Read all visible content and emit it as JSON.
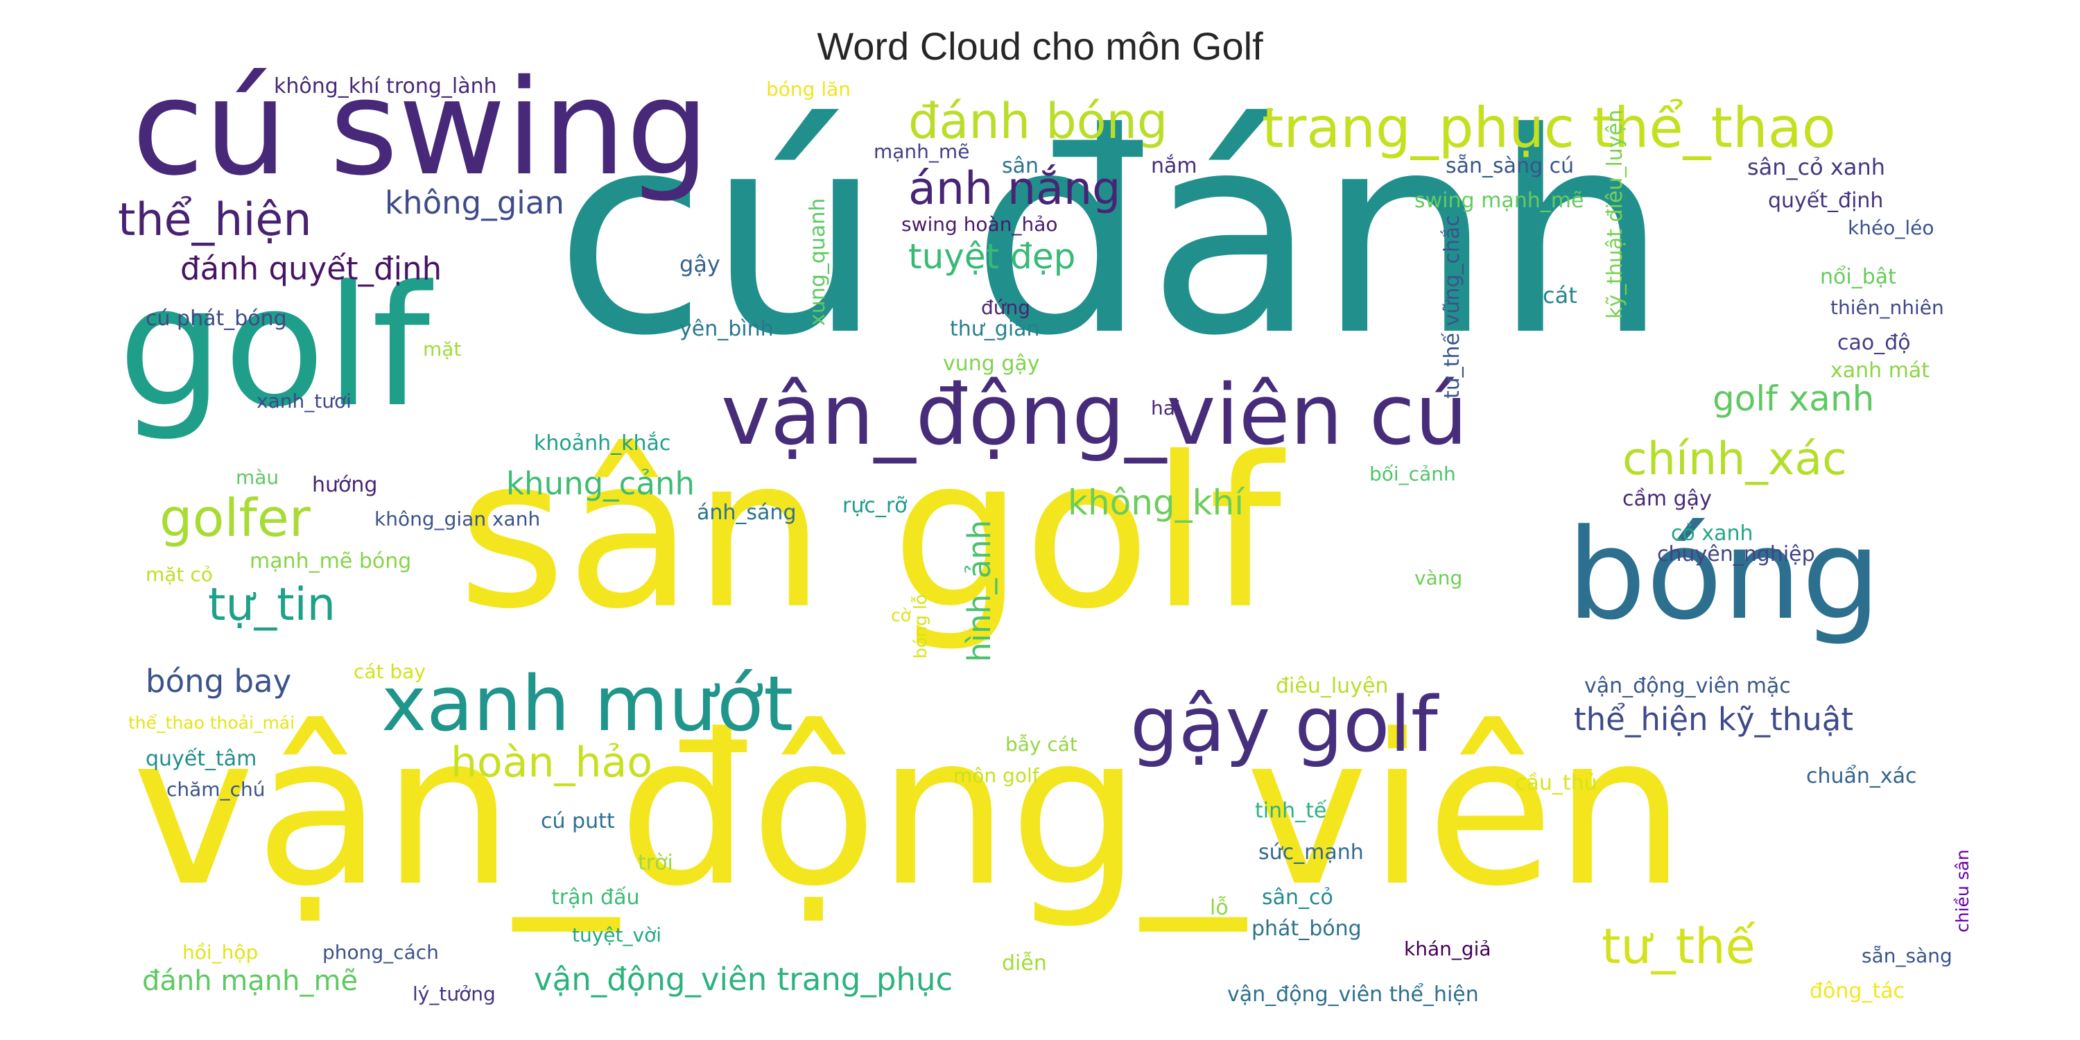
{
  "chart_data": {
    "type": "wordcloud",
    "title": "Word Cloud cho môn Golf",
    "words": [
      {
        "text": "cú đánh",
        "color": "#21908c"
      },
      {
        "text": "vận_động_viên",
        "color": "#f4e61e"
      },
      {
        "text": "sân golf",
        "color": "#f4e61e"
      },
      {
        "text": "cú swing",
        "color": "#482878"
      },
      {
        "text": "golf",
        "color": "#1f9e89"
      },
      {
        "text": "bóng",
        "color": "#2d6f8e"
      },
      {
        "text": "vận_động_viên cú",
        "color": "#472c7a"
      },
      {
        "text": "gậy golf",
        "color": "#46307e"
      },
      {
        "text": "xanh mướt",
        "color": "#1f958b"
      },
      {
        "text": "trang_phục thể_thao",
        "color": "#c5e021"
      },
      {
        "text": "đánh bóng",
        "color": "#bade28"
      },
      {
        "text": "ánh nắng",
        "color": "#482475"
      },
      {
        "text": "thể_hiện",
        "color": "#482173"
      },
      {
        "text": "golfer",
        "color": "#a8db34"
      },
      {
        "text": "tự_tin",
        "color": "#1fa088"
      },
      {
        "text": "chính_xác",
        "color": "#b5de2b"
      },
      {
        "text": "tư_thế",
        "color": "#d2e21b"
      },
      {
        "text": "hoàn_hảo",
        "color": "#c8e020"
      },
      {
        "text": "hình_ảnh",
        "color": "#4ac16d"
      },
      {
        "text": "không_gian",
        "color": "#3e4c8a"
      },
      {
        "text": "đánh quyết_định",
        "color": "#471365"
      },
      {
        "text": "tuyệt đẹp",
        "color": "#38b977"
      },
      {
        "text": "golf xanh",
        "color": "#5ec962"
      },
      {
        "text": "thể_hiện kỹ_thuật",
        "color": "#3e4a89"
      },
      {
        "text": "bóng bay",
        "color": "#3b528b"
      },
      {
        "text": "không_khí",
        "color": "#6ccd5a"
      },
      {
        "text": "khung_cảnh",
        "color": "#3dbc74"
      },
      {
        "text": "vận_động_viên trang_phục",
        "color": "#2db27d"
      },
      {
        "text": "đánh mạnh_mẽ",
        "color": "#5ec962"
      },
      {
        "text": "không_khí trong_lành",
        "color": "#482878"
      },
      {
        "text": "bóng lăn",
        "color": "#f1e51d"
      },
      {
        "text": "mạnh_mẽ",
        "color": "#424086"
      },
      {
        "text": "sân",
        "color": "#2c728e"
      },
      {
        "text": "nắm",
        "color": "#472d7b"
      },
      {
        "text": "sẵn_sàng cú",
        "color": "#39558c"
      },
      {
        "text": "sân_cỏ xanh",
        "color": "#453882"
      },
      {
        "text": "quyết_định",
        "color": "#46337f"
      },
      {
        "text": "khéo_léo",
        "color": "#3a538b"
      },
      {
        "text": "nổi_bật",
        "color": "#67cc5c"
      },
      {
        "text": "thiên_nhiên",
        "color": "#3f4889"
      },
      {
        "text": "cao_độ",
        "color": "#433e85"
      },
      {
        "text": "xanh mát",
        "color": "#8bd646"
      },
      {
        "text": "swing mạnh_mẽ",
        "color": "#65cb5e"
      },
      {
        "text": "swing hoàn_hảo",
        "color": "#481b6d"
      },
      {
        "text": "gậy",
        "color": "#35608d"
      },
      {
        "text": "đứng",
        "color": "#482475"
      },
      {
        "text": "yên_bình",
        "color": "#2a768e"
      },
      {
        "text": "xung_quanh",
        "color": "#5ec962"
      },
      {
        "text": "kỹ_thuật điêu_luyện",
        "color": "#7ad151"
      },
      {
        "text": "tư_thế vững_chắc",
        "color": "#39558c"
      },
      {
        "text": "cát",
        "color": "#25848e"
      },
      {
        "text": "thư_giãn",
        "color": "#26818e"
      },
      {
        "text": "vung gậy",
        "color": "#7fd34e"
      },
      {
        "text": "cú phát_bóng",
        "color": "#3e4a89"
      },
      {
        "text": "mặt",
        "color": "#a2da37"
      },
      {
        "text": "xanh_tươi",
        "color": "#3e4989"
      },
      {
        "text": "hai",
        "color": "#482878"
      },
      {
        "text": "khoảnh_khắc",
        "color": "#1fa187"
      },
      {
        "text": "màu",
        "color": "#5ec962"
      },
      {
        "text": "hướng",
        "color": "#482475"
      },
      {
        "text": "không_gian xanh",
        "color": "#3b528b"
      },
      {
        "text": "ánh_sáng",
        "color": "#2c728e"
      },
      {
        "text": "rực_rỡ",
        "color": "#1f9a8a"
      },
      {
        "text": "bối_cảnh",
        "color": "#50c46a"
      },
      {
        "text": "cầm gậy",
        "color": "#482979"
      },
      {
        "text": "cỏ xanh",
        "color": "#22a785"
      },
      {
        "text": "chuyên_nghiệp",
        "color": "#414487"
      },
      {
        "text": "mặt cỏ",
        "color": "#c2df23"
      },
      {
        "text": "mạnh_mẽ bóng",
        "color": "#86d549"
      },
      {
        "text": "vàng",
        "color": "#6ece58"
      },
      {
        "text": "cờ",
        "color": "#dde318"
      },
      {
        "text": "bóng lỗ",
        "color": "#d8e219"
      },
      {
        "text": "cát bay",
        "color": "#d2e21b"
      },
      {
        "text": "thể_thao thoải_mái",
        "color": "#e5e419"
      },
      {
        "text": "điêu_luyện",
        "color": "#b8de29"
      },
      {
        "text": "vận_động_viên mặc",
        "color": "#39568c"
      },
      {
        "text": "quyết_tâm",
        "color": "#228d8d"
      },
      {
        "text": "chăm_chú",
        "color": "#3b528b"
      },
      {
        "text": "bẫy cát",
        "color": "#93d741"
      },
      {
        "text": "môn golf",
        "color": "#c8e020"
      },
      {
        "text": "cầu_thủ",
        "color": "#dae319"
      },
      {
        "text": "chuẩn_xác",
        "color": "#33638d"
      },
      {
        "text": "tinh_tế",
        "color": "#2db27d"
      },
      {
        "text": "cú putt",
        "color": "#2d718e"
      },
      {
        "text": "trời",
        "color": "#9bd93c"
      },
      {
        "text": "sức_mạnh",
        "color": "#306a8e"
      },
      {
        "text": "trận đấu",
        "color": "#3bbb75"
      },
      {
        "text": "lỗ",
        "color": "#90d743"
      },
      {
        "text": "sân_cỏ",
        "color": "#23898e"
      },
      {
        "text": "chiều sân",
        "color": "#6a00a8"
      },
      {
        "text": "hồi_hộp",
        "color": "#e1e418"
      },
      {
        "text": "phong_cách",
        "color": "#3b528b"
      },
      {
        "text": "tuyệt_vời",
        "color": "#22a884"
      },
      {
        "text": "diễn",
        "color": "#a5db36"
      },
      {
        "text": "phát_bóng",
        "color": "#2c728e"
      },
      {
        "text": "khán_giả",
        "color": "#440154"
      },
      {
        "text": "sẵn_sàng",
        "color": "#3b528b"
      },
      {
        "text": "lý_tưởng",
        "color": "#46327e"
      },
      {
        "text": "vận_động_viên thể_hiện",
        "color": "#2d708e"
      },
      {
        "text": "đông_tác",
        "color": "#f4e61e"
      }
    ]
  }
}
